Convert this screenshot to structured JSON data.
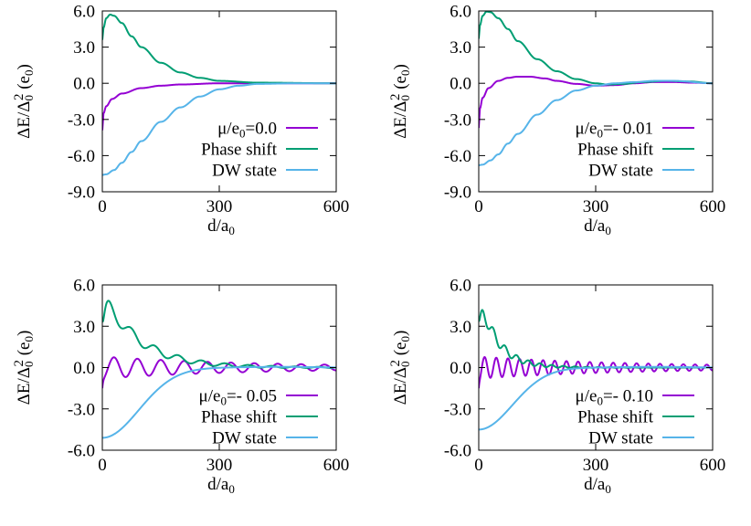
{
  "figure": {
    "ylabel": {
      "pre": "ΔE/Δ",
      "sub0": "0",
      "sup": "2",
      "mid": " (e",
      "sub1": "0",
      "post": ")"
    },
    "xlabel": {
      "pre": "d/a",
      "sub": "0"
    }
  },
  "colors": {
    "purple": "#9400d3",
    "green": "#009e73",
    "blue": "#56b4e9"
  },
  "chart_data": [
    {
      "type": "line",
      "mu": 0.0,
      "legend_mu": {
        "pre": "μ/e",
        "sub": "0",
        "post": "=0.0"
      },
      "xlim": [
        0,
        600
      ],
      "ylim": [
        -9,
        6
      ],
      "xticks": [
        "0",
        "300",
        "600"
      ],
      "yticks": [
        "-9.0",
        "-6.0",
        "-3.0",
        "0.0",
        "3.0",
        "6.0"
      ],
      "legend_position": "bottom-right",
      "series": [
        {
          "name": "",
          "color": "purple",
          "x": [
            0,
            3,
            10,
            25,
            50,
            100,
            150,
            200,
            300,
            400,
            600
          ],
          "y": [
            -3.9,
            -2.5,
            -1.9,
            -1.3,
            -0.85,
            -0.4,
            -0.2,
            -0.1,
            0.0,
            0.0,
            0.0
          ]
        },
        {
          "name": "Phase shift",
          "color": "green",
          "x": [
            0,
            3,
            10,
            20,
            30,
            50,
            75,
            100,
            150,
            200,
            250,
            300,
            400,
            600
          ],
          "y": [
            3.6,
            4.6,
            5.4,
            5.7,
            5.6,
            5.0,
            3.9,
            3.0,
            1.7,
            0.9,
            0.45,
            0.2,
            0.05,
            0.0
          ]
        },
        {
          "name": "DW state",
          "color": "blue",
          "x": [
            0,
            10,
            30,
            50,
            75,
            100,
            150,
            200,
            250,
            300,
            350,
            400,
            500,
            600
          ],
          "y": [
            -7.6,
            -7.55,
            -7.2,
            -6.6,
            -5.7,
            -4.8,
            -3.2,
            -2.0,
            -1.1,
            -0.5,
            -0.2,
            -0.05,
            0.0,
            0.0
          ]
        }
      ]
    },
    {
      "type": "line",
      "mu": -0.01,
      "legend_mu": {
        "pre": "μ/e",
        "sub": "0",
        "post": "=- 0.01"
      },
      "xlim": [
        0,
        600
      ],
      "ylim": [
        -9,
        6
      ],
      "xticks": [
        "0",
        "300",
        "600"
      ],
      "yticks": [
        "-9.0",
        "-6.0",
        "-3.0",
        "0.0",
        "3.0",
        "6.0"
      ],
      "legend_position": "bottom-right",
      "series": [
        {
          "name": "",
          "color": "purple",
          "x": [
            0,
            3,
            10,
            25,
            50,
            75,
            100,
            130,
            170,
            200,
            250,
            300,
            350,
            400,
            450,
            500,
            550,
            600
          ],
          "y": [
            -3.7,
            -2.1,
            -1.2,
            -0.4,
            0.2,
            0.45,
            0.55,
            0.55,
            0.4,
            0.2,
            -0.05,
            -0.2,
            -0.15,
            0.0,
            0.1,
            0.1,
            0.05,
            0.0
          ]
        },
        {
          "name": "Phase shift",
          "color": "green",
          "x": [
            0,
            3,
            10,
            20,
            30,
            50,
            75,
            100,
            150,
            200,
            250,
            300,
            330,
            370,
            420,
            480,
            540,
            600
          ],
          "y": [
            3.7,
            4.8,
            5.6,
            5.95,
            5.9,
            5.4,
            4.5,
            3.5,
            2.0,
            1.0,
            0.35,
            0.0,
            -0.1,
            -0.05,
            0.1,
            0.2,
            0.15,
            0.0
          ]
        },
        {
          "name": "DW state",
          "color": "blue",
          "x": [
            0,
            10,
            30,
            50,
            75,
            100,
            150,
            200,
            250,
            300,
            350,
            400,
            450,
            500,
            600
          ],
          "y": [
            -6.8,
            -6.75,
            -6.4,
            -5.9,
            -5.0,
            -4.2,
            -2.6,
            -1.4,
            -0.6,
            -0.2,
            0.0,
            0.1,
            0.2,
            0.2,
            0.0
          ]
        }
      ]
    },
    {
      "type": "line",
      "mu": -0.05,
      "legend_mu": {
        "pre": "μ/e",
        "sub": "0",
        "post": "=- 0.05"
      },
      "xlim": [
        0,
        600
      ],
      "ylim": [
        -6,
        6
      ],
      "xticks": [
        "0",
        "300",
        "600"
      ],
      "yticks": [
        "-6.0",
        "-3.0",
        "0.0",
        "3.0",
        "6.0"
      ],
      "legend_position": "bottom-right",
      "period": 60,
      "series": [
        {
          "name": "",
          "color": "purple",
          "curve": "osc_purple"
        },
        {
          "name": "Phase shift",
          "color": "green",
          "curve": "osc_green"
        },
        {
          "name": "DW state",
          "color": "blue",
          "curve": "dw",
          "dw_min": -5.1,
          "dw_width": 135
        }
      ]
    },
    {
      "type": "line",
      "mu": -0.1,
      "legend_mu": {
        "pre": "μ/e",
        "sub": "0",
        "post": "=- 0.10"
      },
      "xlim": [
        0,
        600
      ],
      "ylim": [
        -6,
        6
      ],
      "xticks": [
        "0",
        "300",
        "600"
      ],
      "yticks": [
        "-6.0",
        "-3.0",
        "0.0",
        "3.0",
        "6.0"
      ],
      "legend_position": "bottom-right",
      "period": 30,
      "series": [
        {
          "name": "",
          "color": "purple",
          "curve": "osc_purple"
        },
        {
          "name": "Phase shift",
          "color": "green",
          "curve": "osc_green"
        },
        {
          "name": "DW state",
          "color": "blue",
          "curve": "dw",
          "dw_min": -4.5,
          "dw_width": 125
        }
      ]
    }
  ]
}
